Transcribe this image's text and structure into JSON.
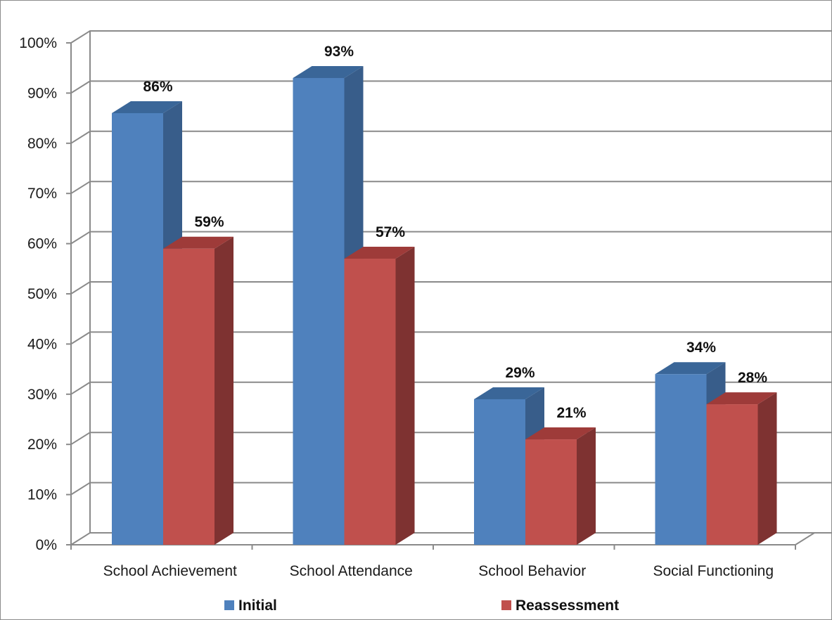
{
  "chart_data": {
    "type": "bar",
    "title": "",
    "xlabel": "",
    "ylabel": "",
    "categories": [
      "School Achievement",
      "School Attendance",
      "School Behavior",
      "Social Functioning"
    ],
    "series": [
      {
        "name": "Initial",
        "values": [
          86,
          93,
          29,
          34
        ],
        "labels": [
          "86%",
          "93%",
          "29%",
          "34%"
        ],
        "color": "#4F81BD",
        "side_color": "#385D8A",
        "top_color": "#3A6698"
      },
      {
        "name": "Reassessment",
        "values": [
          59,
          57,
          21,
          28
        ],
        "labels": [
          "59%",
          "57%",
          "21%",
          "28%"
        ],
        "color": "#C0504D",
        "side_color": "#7E3231",
        "top_color": "#9E3B39"
      }
    ],
    "ylim": [
      0,
      100
    ],
    "yticks": [
      "0%",
      "10%",
      "20%",
      "30%",
      "40%",
      "50%",
      "60%",
      "70%",
      "80%",
      "90%",
      "100%"
    ],
    "grid": true,
    "legend_position": "bottom",
    "three_d": true
  }
}
